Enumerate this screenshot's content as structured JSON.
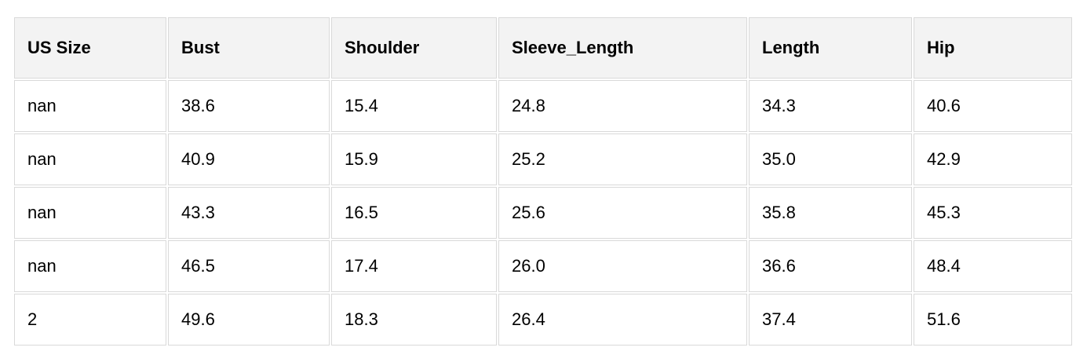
{
  "colors": {
    "header_bg": "#f3f3f3",
    "cell_bg": "#ffffff",
    "border": "#d9d9d9",
    "text": "#000000"
  },
  "chart_data": {
    "type": "table",
    "columns": [
      "US Size",
      "Bust",
      "Shoulder",
      "Sleeve_Length",
      "Length",
      "Hip"
    ],
    "rows": [
      [
        "nan",
        "38.6",
        "15.4",
        "24.8",
        "34.3",
        "40.6"
      ],
      [
        "nan",
        "40.9",
        "15.9",
        "25.2",
        "35.0",
        "42.9"
      ],
      [
        "nan",
        "43.3",
        "16.5",
        "25.6",
        "35.8",
        "45.3"
      ],
      [
        "nan",
        "46.5",
        "17.4",
        "26.0",
        "36.6",
        "48.4"
      ],
      [
        "2",
        "49.6",
        "18.3",
        "26.4",
        "37.4",
        "51.6"
      ]
    ]
  }
}
